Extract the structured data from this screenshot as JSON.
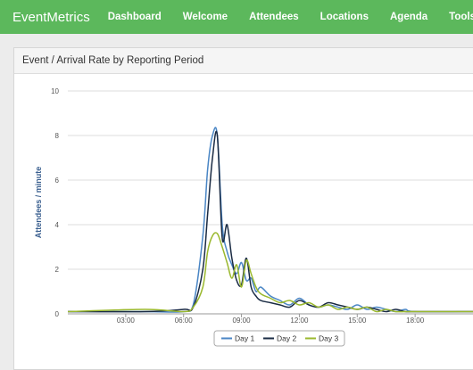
{
  "navbar": {
    "brand": "EventMetrics",
    "items": [
      "Dashboard",
      "Welcome",
      "Attendees",
      "Locations",
      "Agenda",
      "Tools"
    ]
  },
  "panel": {
    "title": "Event / Arrival Rate by Reporting Period"
  },
  "colors": {
    "navbar": "#5cb85c",
    "day1": "#4a86c5",
    "day2": "#1a2b44",
    "day3": "#9ab82e"
  },
  "chart_data": {
    "type": "line",
    "title": "",
    "xlabel": "",
    "ylabel": "Attendees / minute",
    "ylim": [
      0,
      10
    ],
    "yticks": [
      0,
      2,
      4,
      6,
      8,
      10
    ],
    "xlim": [
      "00:00",
      "21:00"
    ],
    "xticks": [
      "03:00",
      "06:00",
      "09:00",
      "12:00",
      "15:00",
      "18:00"
    ],
    "grid": true,
    "legend": "bottom",
    "series": [
      {
        "name": "Day 1",
        "x": [
          "00:00",
          "04:00",
          "06:00",
          "06:30",
          "07:00",
          "07:15",
          "07:30",
          "07:45",
          "08:00",
          "08:15",
          "08:30",
          "08:45",
          "09:00",
          "09:15",
          "09:30",
          "09:45",
          "10:00",
          "10:30",
          "11:00",
          "11:30",
          "12:00",
          "12:30",
          "13:00",
          "13:30",
          "14:00",
          "14:30",
          "15:00",
          "15:30",
          "16:00",
          "16:30",
          "17:00",
          "17:30",
          "18:00",
          "21:00"
        ],
        "y": [
          0.1,
          0.1,
          0.1,
          0.4,
          3.5,
          6.5,
          8,
          8,
          4,
          2.8,
          2.2,
          1.8,
          2.3,
          1.5,
          1.6,
          1,
          1.2,
          0.8,
          0.6,
          0.4,
          0.7,
          0.4,
          0.3,
          0.4,
          0.3,
          0.2,
          0.4,
          0.2,
          0.3,
          0.2,
          0.1,
          0.2,
          0.1,
          0.1
        ]
      },
      {
        "name": "Day 2",
        "x": [
          "00:00",
          "04:00",
          "06:00",
          "06:30",
          "07:00",
          "07:15",
          "07:30",
          "07:45",
          "08:00",
          "08:15",
          "08:30",
          "08:45",
          "09:00",
          "09:15",
          "09:30",
          "09:45",
          "10:00",
          "10:30",
          "11:00",
          "11:30",
          "12:00",
          "12:30",
          "13:00",
          "13:30",
          "14:00",
          "14:30",
          "15:00",
          "15:30",
          "16:00",
          "16:30",
          "17:00",
          "17:30",
          "18:00",
          "21:00"
        ],
        "y": [
          0.1,
          0.1,
          0.2,
          0.3,
          2,
          4.5,
          7,
          8,
          3.4,
          4,
          2.5,
          1.5,
          1.3,
          2.5,
          1.2,
          0.8,
          0.6,
          0.5,
          0.4,
          0.3,
          0.6,
          0.4,
          0.3,
          0.5,
          0.4,
          0.3,
          0.2,
          0.3,
          0.2,
          0.1,
          0.2,
          0.1,
          0.1,
          0.1
        ]
      },
      {
        "name": "Day 3",
        "x": [
          "00:00",
          "04:00",
          "06:00",
          "06:30",
          "07:00",
          "07:15",
          "07:30",
          "07:45",
          "08:00",
          "08:15",
          "08:30",
          "08:45",
          "09:00",
          "09:15",
          "09:30",
          "09:45",
          "10:00",
          "10:30",
          "11:00",
          "11:30",
          "12:00",
          "12:30",
          "13:00",
          "13:30",
          "14:00",
          "14:30",
          "15:00",
          "15:30",
          "16:00",
          "16:30",
          "17:00",
          "17:30",
          "18:00",
          "21:00"
        ],
        "y": [
          0.1,
          0.2,
          0.1,
          0.3,
          1.2,
          2.8,
          3.5,
          3.6,
          3,
          2.3,
          1.6,
          2.2,
          1.2,
          2.4,
          1.8,
          1.2,
          0.9,
          0.7,
          0.5,
          0.6,
          0.4,
          0.5,
          0.3,
          0.4,
          0.2,
          0.3,
          0.2,
          0.3,
          0.1,
          0.2,
          0.1,
          0.1,
          0.1,
          0.1
        ]
      }
    ]
  }
}
